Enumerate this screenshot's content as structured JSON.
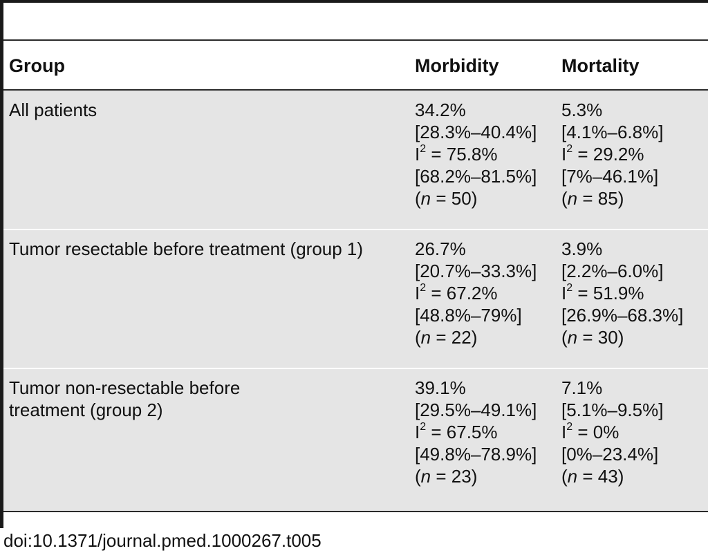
{
  "table": {
    "headers": {
      "group": "Group",
      "morbidity": "Morbidity",
      "mortality": "Mortality"
    },
    "rows": [
      {
        "group": [
          "All patients"
        ],
        "morbidity": {
          "value": "34.2%",
          "ci": "[28.3%–40.4%]",
          "i2_prefix": "I",
          "i2_sup": "2",
          "i2_value": " = 75.8%",
          "i2_ci": "[68.2%–81.5%]",
          "n_open": "(",
          "n_var": "n",
          "n_value": " = 50)"
        },
        "mortality": {
          "value": "5.3%",
          "ci": "[4.1%–6.8%]",
          "i2_prefix": "I",
          "i2_sup": "2",
          "i2_value": " = 29.2%",
          "i2_ci": "[7%–46.1%]",
          "n_open": "(",
          "n_var": "n",
          "n_value": " = 85)"
        }
      },
      {
        "group": [
          "Tumor resectable before treatment (group 1)"
        ],
        "morbidity": {
          "value": "26.7%",
          "ci": "[20.7%–33.3%]",
          "i2_prefix": "I",
          "i2_sup": "2",
          "i2_value": " = 67.2%",
          "i2_ci": "[48.8%–79%]",
          "n_open": "(",
          "n_var": "n",
          "n_value": " = 22)"
        },
        "mortality": {
          "value": "3.9%",
          "ci": "[2.2%–6.0%]",
          "i2_prefix": "I",
          "i2_sup": "2",
          "i2_value": " = 51.9%",
          "i2_ci": "[26.9%–68.3%]",
          "n_open": "(",
          "n_var": "n",
          "n_value": " = 30)"
        }
      },
      {
        "group": [
          "Tumor non-resectable before",
          "treatment (group 2)"
        ],
        "morbidity": {
          "value": "39.1%",
          "ci": "[29.5%–49.1%]",
          "i2_prefix": "I",
          "i2_sup": "2",
          "i2_value": " = 67.5%",
          "i2_ci": "[49.8%–78.9%]",
          "n_open": "(",
          "n_var": "n",
          "n_value": " = 23)"
        },
        "mortality": {
          "value": "7.1%",
          "ci": "[5.1%–9.5%]",
          "i2_prefix": "I",
          "i2_sup": "2",
          "i2_value": " = 0%",
          "i2_ci": "[0%–23.4%]",
          "n_open": "(",
          "n_var": "n",
          "n_value": " = 43)"
        }
      }
    ]
  },
  "footer": {
    "doi": "doi:10.1371/journal.pmed.1000267.t005"
  },
  "colors": {
    "row_shade": "#e5e5e5",
    "rule": "#2a2a2a",
    "frame": "#1a1a1a"
  }
}
